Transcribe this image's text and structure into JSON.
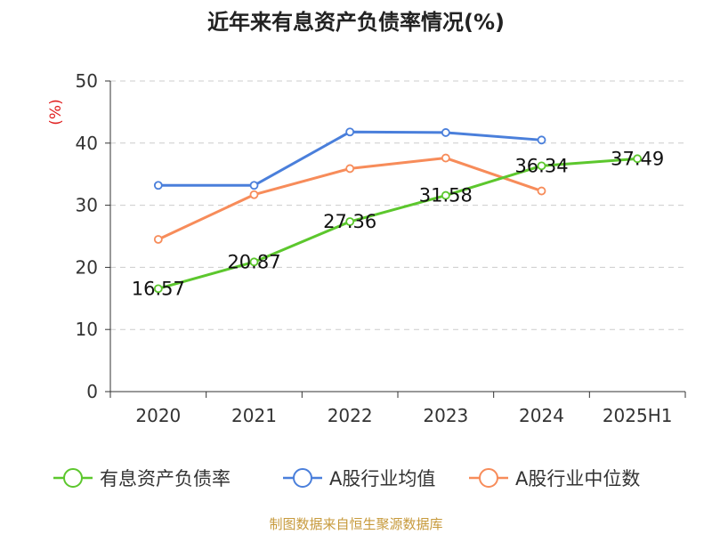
{
  "chart_data": {
    "type": "line",
    "title": "近年来有息资产负债率情况(%)",
    "ylabel": "(%)",
    "xlabel": "",
    "categories": [
      "2020",
      "2021",
      "2022",
      "2023",
      "2024",
      "2025H1"
    ],
    "ylim": [
      0,
      50
    ],
    "yticks": [
      0,
      10,
      20,
      30,
      40,
      50
    ],
    "grid": true,
    "legend_position": "bottom",
    "series": [
      {
        "name": "有息资产负债率",
        "color": "#5cc72d",
        "values": [
          16.57,
          20.87,
          27.36,
          31.58,
          36.34,
          37.49
        ],
        "labels": [
          "16.57",
          "20.87",
          "27.36",
          "31.58",
          "36.34",
          "37.49"
        ]
      },
      {
        "name": "A股行业均值",
        "color": "#4a7fdb",
        "values": [
          33.2,
          33.2,
          41.8,
          41.7,
          40.5,
          null
        ]
      },
      {
        "name": "A股行业中位数",
        "color": "#f78c5a",
        "values": [
          24.5,
          31.7,
          35.9,
          37.6,
          32.3,
          null
        ]
      }
    ],
    "ylabel_color": "#e02020"
  },
  "footer": {
    "source": "制图数据来自恒生聚源数据库",
    "source_color": "#c79a3c"
  }
}
